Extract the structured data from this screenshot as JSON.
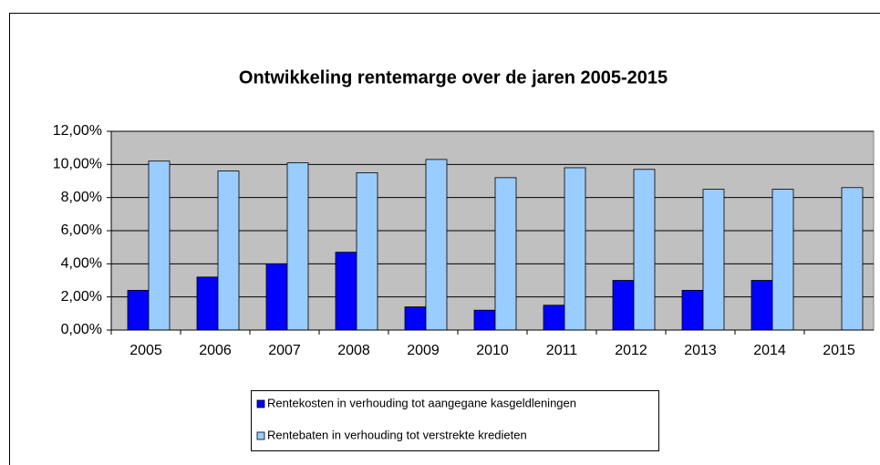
{
  "chart_data": {
    "type": "bar",
    "title": "Ontwikkeling rentemarge over de jaren 2005-2015",
    "categories": [
      "2005",
      "2006",
      "2007",
      "2008",
      "2009",
      "2010",
      "2011",
      "2012",
      "2013",
      "2014",
      "2015"
    ],
    "series": [
      {
        "name": "Rentekosten in verhouding tot aangegane kasgeldleningen",
        "color": "#0000ff",
        "values": [
          2.4,
          3.2,
          4.0,
          4.7,
          1.4,
          1.2,
          1.5,
          3.0,
          2.4,
          3.0,
          null
        ]
      },
      {
        "name": "Rentebaten in verhouding tot verstrekte kredieten",
        "color": "#99ccff",
        "values": [
          10.2,
          9.6,
          10.1,
          9.5,
          10.3,
          9.2,
          9.8,
          9.7,
          8.5,
          8.5,
          8.6
        ]
      }
    ],
    "ylim": [
      0,
      12
    ],
    "yticks": [
      {
        "value": 0,
        "label": "0,00%"
      },
      {
        "value": 2,
        "label": "2,00%"
      },
      {
        "value": 4,
        "label": "4,00%"
      },
      {
        "value": 6,
        "label": "6,00%"
      },
      {
        "value": 8,
        "label": "8,00%"
      },
      {
        "value": 10,
        "label": "10,00%"
      },
      {
        "value": 12,
        "label": "12,00%"
      }
    ],
    "grid": true,
    "plot_background": "#c0c0c0"
  }
}
